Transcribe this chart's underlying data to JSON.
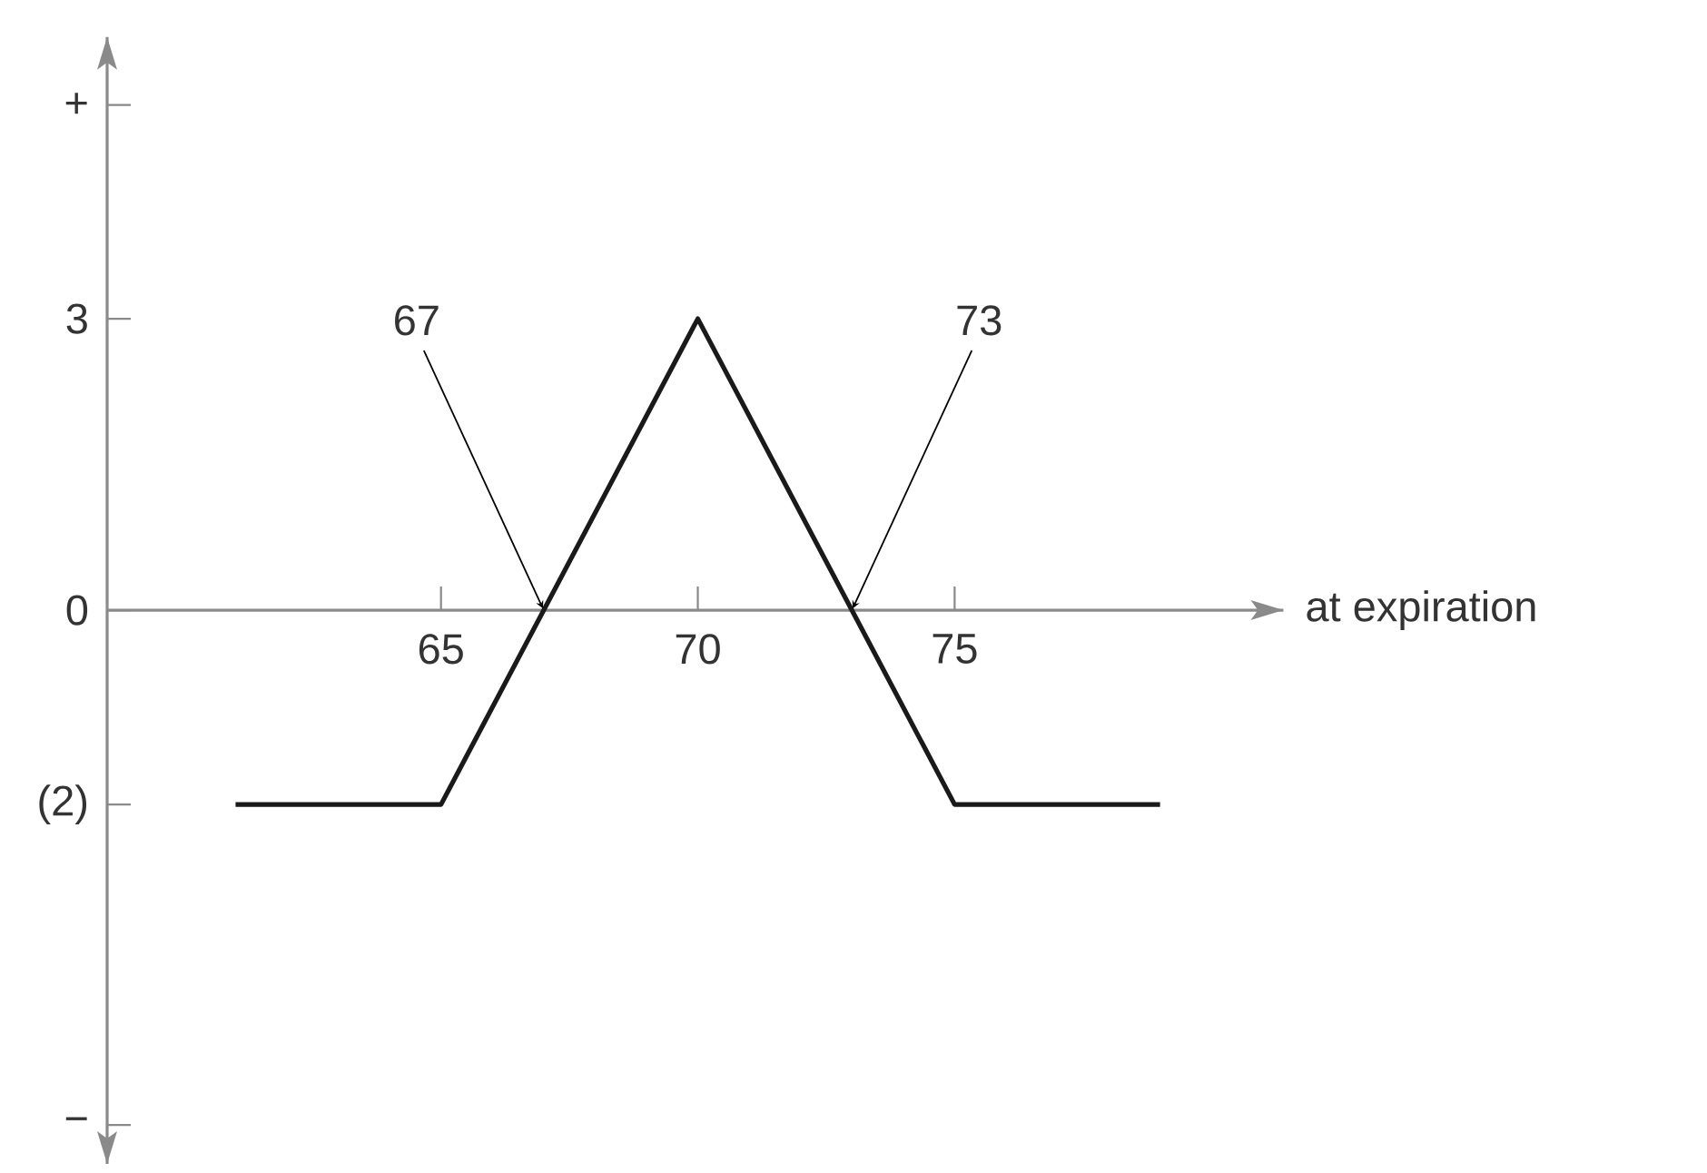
{
  "chart_data": {
    "type": "line",
    "xlabel": "at expiration",
    "x": [
      61,
      65,
      70,
      75,
      79
    ],
    "values": [
      -2,
      -2,
      3,
      -2,
      -2
    ],
    "color": "#1a1a1a",
    "xlim": [
      58.5,
      81.4
    ],
    "ylim": [
      -5.7,
      5.9
    ],
    "xticks": [
      65,
      70,
      75
    ],
    "yticks": [
      {
        "value": 5.2,
        "label": "+"
      },
      3,
      0,
      {
        "value": -2,
        "label": "(2)"
      },
      {
        "value": -5.3,
        "label": "−"
      }
    ],
    "annotations": [
      {
        "text": "67",
        "x": 67,
        "y": 0
      },
      {
        "text": "73",
        "x": 73,
        "y": 0
      }
    ]
  }
}
